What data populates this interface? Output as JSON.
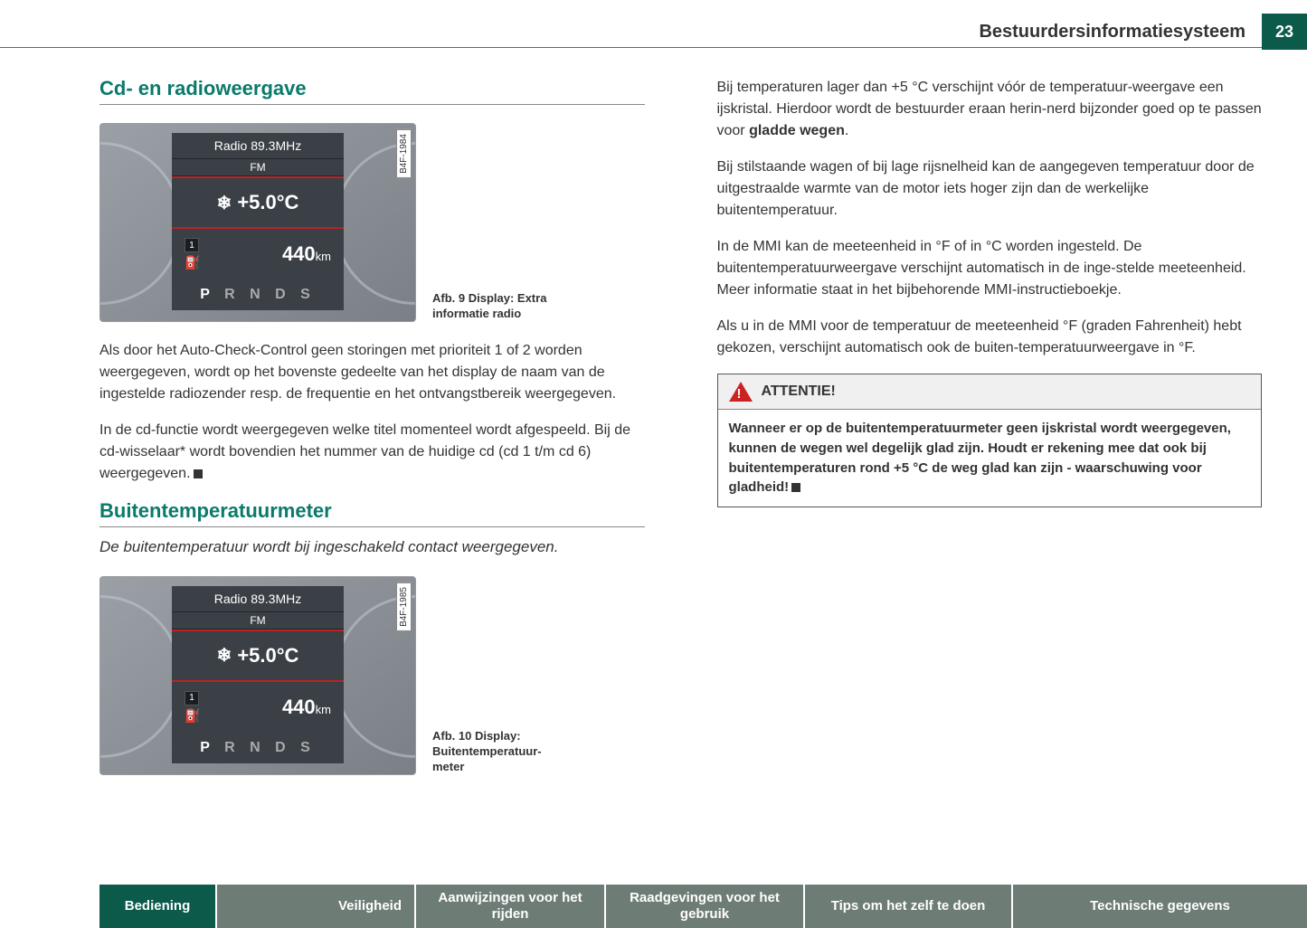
{
  "header": {
    "title": "Bestuurdersinformatiesysteem",
    "page_number": "23"
  },
  "left_column": {
    "section1_title": "Cd- en radioweergave",
    "fig1": {
      "radio_label": "Radio  89.3MHz",
      "band": "FM",
      "temp": "+5.0°C",
      "gear_num": "1",
      "odo_value": "440",
      "odo_unit": "km",
      "gear_p": "P",
      "gear_rest": "R N D S",
      "code": "B4F-1984",
      "caption": "Afb. 9   Display: Extra informatie radio"
    },
    "para1": "Als door het Auto-Check-Control geen storingen met prioriteit 1 of 2 worden weergegeven, wordt op het bovenste gedeelte van het display de naam van de ingestelde radiozender resp. de frequentie en het ontvangstbereik weergegeven.",
    "para2": "In de cd-functie wordt weergegeven welke titel momenteel wordt afgespeeld. Bij de cd-wisselaar* wordt bovendien het nummer van de huidige cd (cd 1 t/m cd 6) weergegeven.",
    "section2_title": "Buitentemperatuurmeter",
    "section2_subtitle": "De buitentemperatuur wordt bij ingeschakeld contact weergegeven.",
    "fig2": {
      "radio_label": "Radio  89.3MHz",
      "band": "FM",
      "temp": "+5.0°C",
      "gear_num": "1",
      "odo_value": "440",
      "odo_unit": "km",
      "gear_p": "P",
      "gear_rest": "R N D S",
      "code": "B4F-1985",
      "caption": "Afb. 10   Display: Buitentemperatuur-meter"
    }
  },
  "right_column": {
    "para1_a": "Bij temperaturen lager dan +5 °C verschijnt vóór de temperatuur-weergave een ijskristal. Hierdoor wordt de bestuurder eraan herin-nerd bijzonder goed op te passen voor ",
    "para1_bold": "gladde wegen",
    "para1_b": ".",
    "para2": "Bij stilstaande wagen of bij lage rijsnelheid kan de aangegeven temperatuur door de uitgestraalde warmte van de motor iets hoger zijn dan de werkelijke buitentemperatuur.",
    "para3": "In de MMI kan de meeteenheid in °F of in °C worden ingesteld. De buitentemperatuurweergave verschijnt automatisch in de inge-stelde meeteenheid. Meer informatie staat in het bijbehorende MMI-instructieboekje.",
    "para4": "Als u in de MMI voor de temperatuur de meeteenheid °F (graden Fahrenheit) hebt gekozen, verschijnt automatisch ook de buiten-temperatuurweergave in °F.",
    "warning": {
      "title": "ATTENTIE!",
      "body": "Wanneer er op de buitentemperatuurmeter geen ijskristal wordt weergegeven, kunnen de wegen wel degelijk glad zijn. Houdt er rekening mee dat ook bij buitentemperaturen rond +5 °C de weg glad kan zijn - waarschuwing voor gladheid!"
    }
  },
  "footer": {
    "tabs": [
      "Bediening",
      "Veiligheid",
      "Aanwijzingen voor het rijden",
      "Raadgevingen voor het gebruik",
      "Tips om het zelf te doen",
      "Technische gegevens"
    ]
  },
  "colors": {
    "teal": "#0b7a6a",
    "dark_teal": "#0b5a4a",
    "grey_tab": "#6e7c76",
    "red": "#c22"
  }
}
